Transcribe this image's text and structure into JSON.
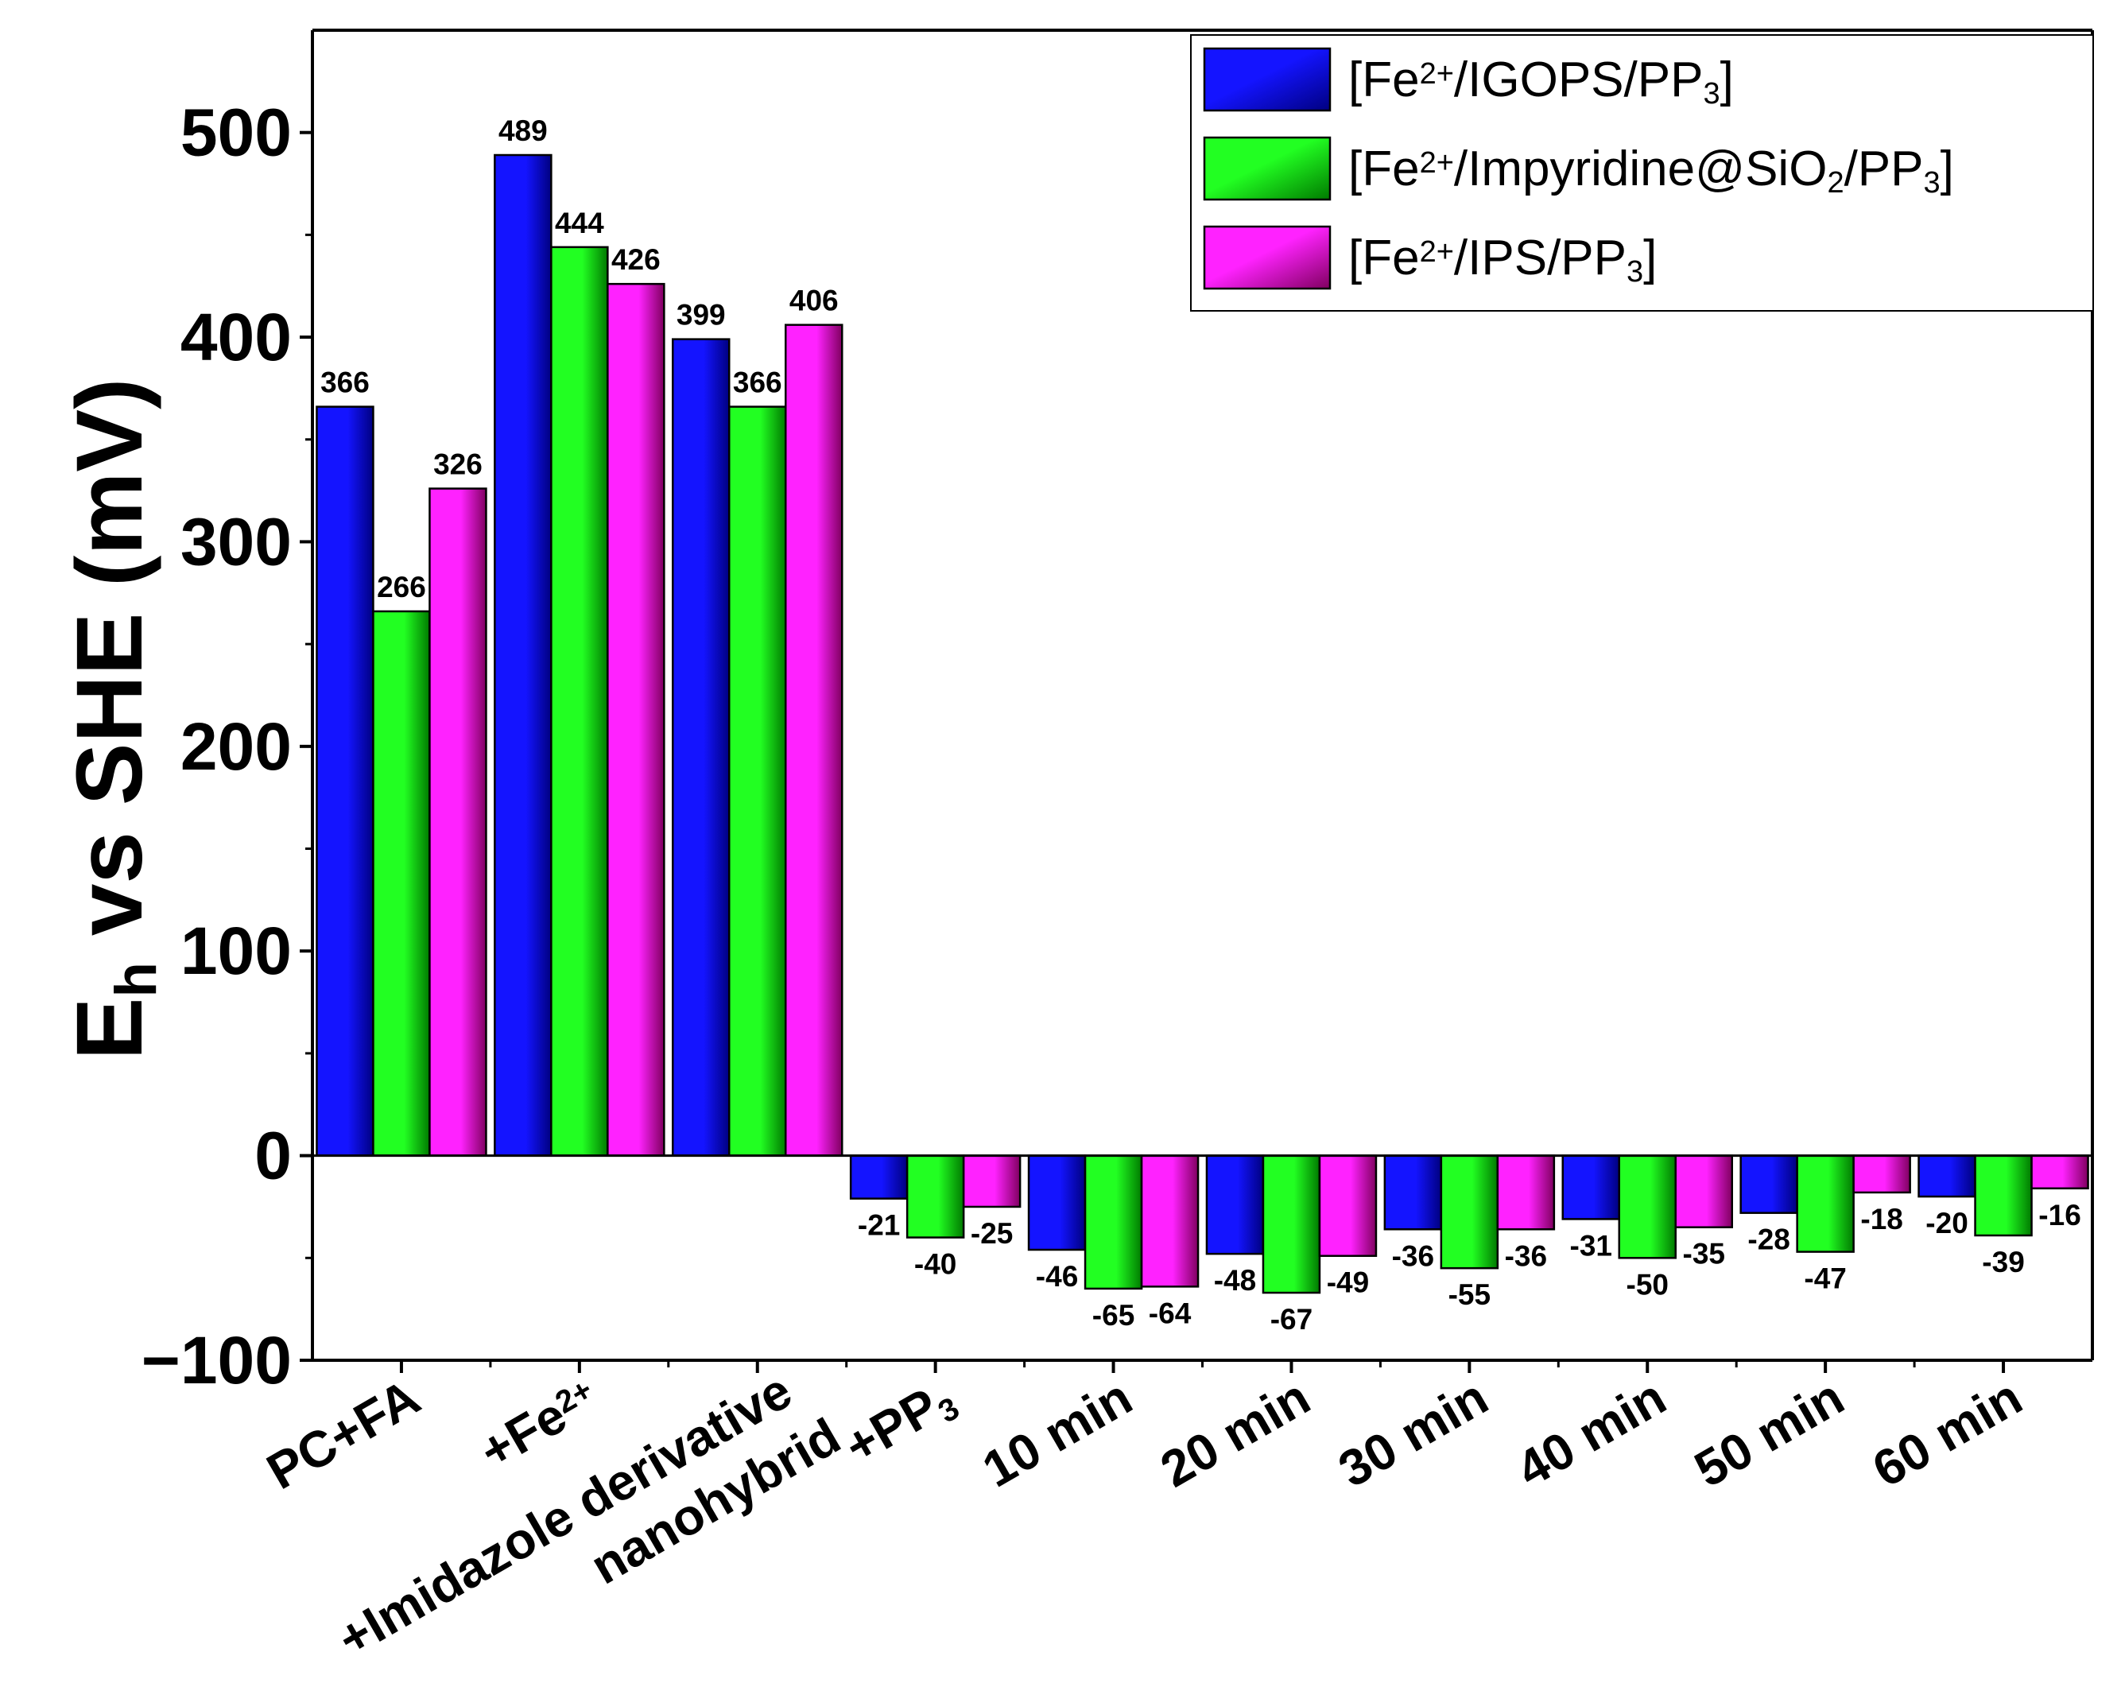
{
  "chart_data": {
    "type": "bar",
    "ylabel": {
      "main": "E",
      "sub": "h",
      "rest": " vs SHE (mV)"
    },
    "ylim": [
      -100,
      550
    ],
    "yticks": [
      -100,
      0,
      100,
      200,
      300,
      400,
      500
    ],
    "ytick_labels": [
      "−100",
      "0",
      "100",
      "200",
      "300",
      "400",
      "500"
    ],
    "categories": [
      {
        "lines": [
          [
            {
              "t": "PC+FA"
            }
          ]
        ]
      },
      {
        "lines": [
          [
            {
              "t": "+Fe"
            },
            {
              "t": "2+",
              "sup": true
            }
          ]
        ]
      },
      {
        "lines": [
          [
            {
              "t": "+Imidazole derivative"
            }
          ],
          [
            {
              "t": "nanohybrid"
            }
          ]
        ]
      },
      {
        "lines": [
          [
            {
              "t": "+PP"
            },
            {
              "t": "3",
              "sub": true
            }
          ]
        ]
      },
      {
        "lines": [
          [
            {
              "t": "10 min"
            }
          ]
        ]
      },
      {
        "lines": [
          [
            {
              "t": "20 min"
            }
          ]
        ]
      },
      {
        "lines": [
          [
            {
              "t": "30 min"
            }
          ]
        ]
      },
      {
        "lines": [
          [
            {
              "t": "40 min"
            }
          ]
        ]
      },
      {
        "lines": [
          [
            {
              "t": "50 min"
            }
          ]
        ]
      },
      {
        "lines": [
          [
            {
              "t": "60 min"
            }
          ]
        ]
      }
    ],
    "series": [
      {
        "name_parts": [
          {
            "t": "[Fe"
          },
          {
            "t": "2+",
            "sup": true
          },
          {
            "t": "/IGOPS/PP"
          },
          {
            "t": "3",
            "sub": true
          },
          {
            "t": "]"
          }
        ],
        "color": "#1414ff",
        "dark": "#000080",
        "values": [
          366,
          489,
          399,
          -21,
          -46,
          -48,
          -36,
          -31,
          -28,
          -20
        ]
      },
      {
        "name_parts": [
          {
            "t": "[Fe"
          },
          {
            "t": "2+",
            "sup": true
          },
          {
            "t": "/Impyridine@SiO"
          },
          {
            "t": "2",
            "sub": true
          },
          {
            "t": "/PP"
          },
          {
            "t": "3",
            "sub": true
          },
          {
            "t": "]"
          }
        ],
        "color": "#22ff22",
        "dark": "#007a00",
        "values": [
          266,
          444,
          366,
          -40,
          -65,
          -67,
          -55,
          -50,
          -47,
          -39
        ]
      },
      {
        "name_parts": [
          {
            "t": "[Fe"
          },
          {
            "t": "2+",
            "sup": true
          },
          {
            "t": "/IPS/PP"
          },
          {
            "t": "3",
            "sub": true
          },
          {
            "t": "]"
          }
        ],
        "color": "#ff22ff",
        "dark": "#800060",
        "values": [
          326,
          426,
          406,
          -25,
          -64,
          -49,
          -36,
          -35,
          -18,
          -16
        ]
      }
    ],
    "legend_position": "top-right"
  }
}
